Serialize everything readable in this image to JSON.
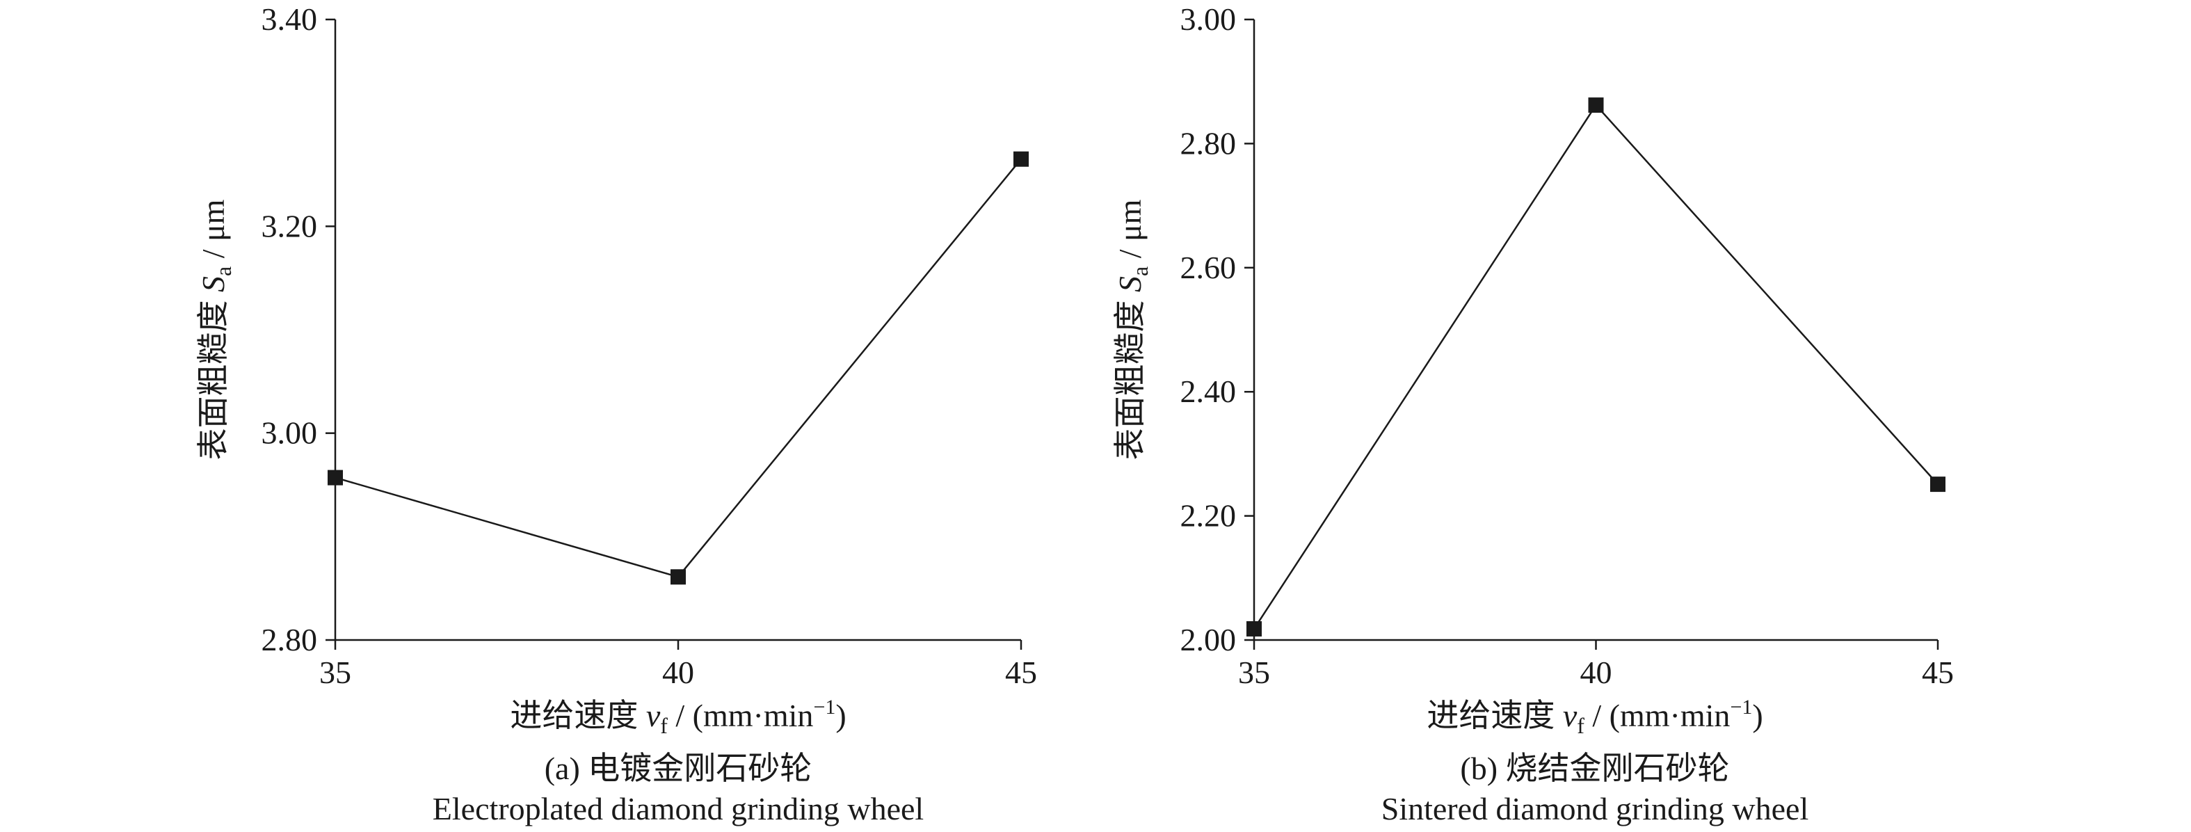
{
  "chart_data": [
    {
      "type": "line",
      "categories": [
        35,
        40,
        45
      ],
      "x": [
        35,
        40,
        45
      ],
      "series": [
        {
          "values": [
            2.957,
            2.861,
            3.265
          ]
        }
      ],
      "xlim": [
        35,
        45
      ],
      "ylim": [
        2.8,
        3.4
      ],
      "xticks": [
        "35",
        "40",
        "45"
      ],
      "yticks": [
        "2.80",
        "3.00",
        "3.20",
        "3.40"
      ],
      "ylabel": {
        "text": "表面粗糙度 ",
        "var": "S",
        "sub": "a",
        "unit": " / μm"
      },
      "xlabel": {
        "text": "进给速度 ",
        "var": "v",
        "sub": "f",
        "unit": " / (mm·min",
        "sup": "−1",
        "close": ")"
      },
      "caption_cn": "(a) 电镀金刚石砂轮",
      "caption_en": "Electroplated diamond grinding wheel",
      "grid": false,
      "marker": "square",
      "line_color": "#1a1a1a"
    },
    {
      "type": "line",
      "categories": [
        35,
        40,
        45
      ],
      "x": [
        35,
        40,
        45
      ],
      "series": [
        {
          "values": [
            2.018,
            2.862,
            2.251
          ]
        }
      ],
      "xlim": [
        35,
        45
      ],
      "ylim": [
        2.0,
        3.0
      ],
      "xticks": [
        "35",
        "40",
        "45"
      ],
      "yticks": [
        "2.00",
        "2.20",
        "2.40",
        "2.60",
        "2.80",
        "3.00"
      ],
      "ylabel": {
        "text": "表面粗糙度 ",
        "var": "S",
        "sub": "a",
        "unit": " / μm"
      },
      "xlabel": {
        "text": "进给速度 ",
        "var": "v",
        "sub": "f",
        "unit": " / (mm·min",
        "sup": "−1",
        "close": ")"
      },
      "caption_cn": "(b) 烧结金刚石砂轮",
      "caption_en": "Sintered diamond grinding wheel",
      "grid": false,
      "marker": "square",
      "line_color": "#1a1a1a"
    }
  ]
}
